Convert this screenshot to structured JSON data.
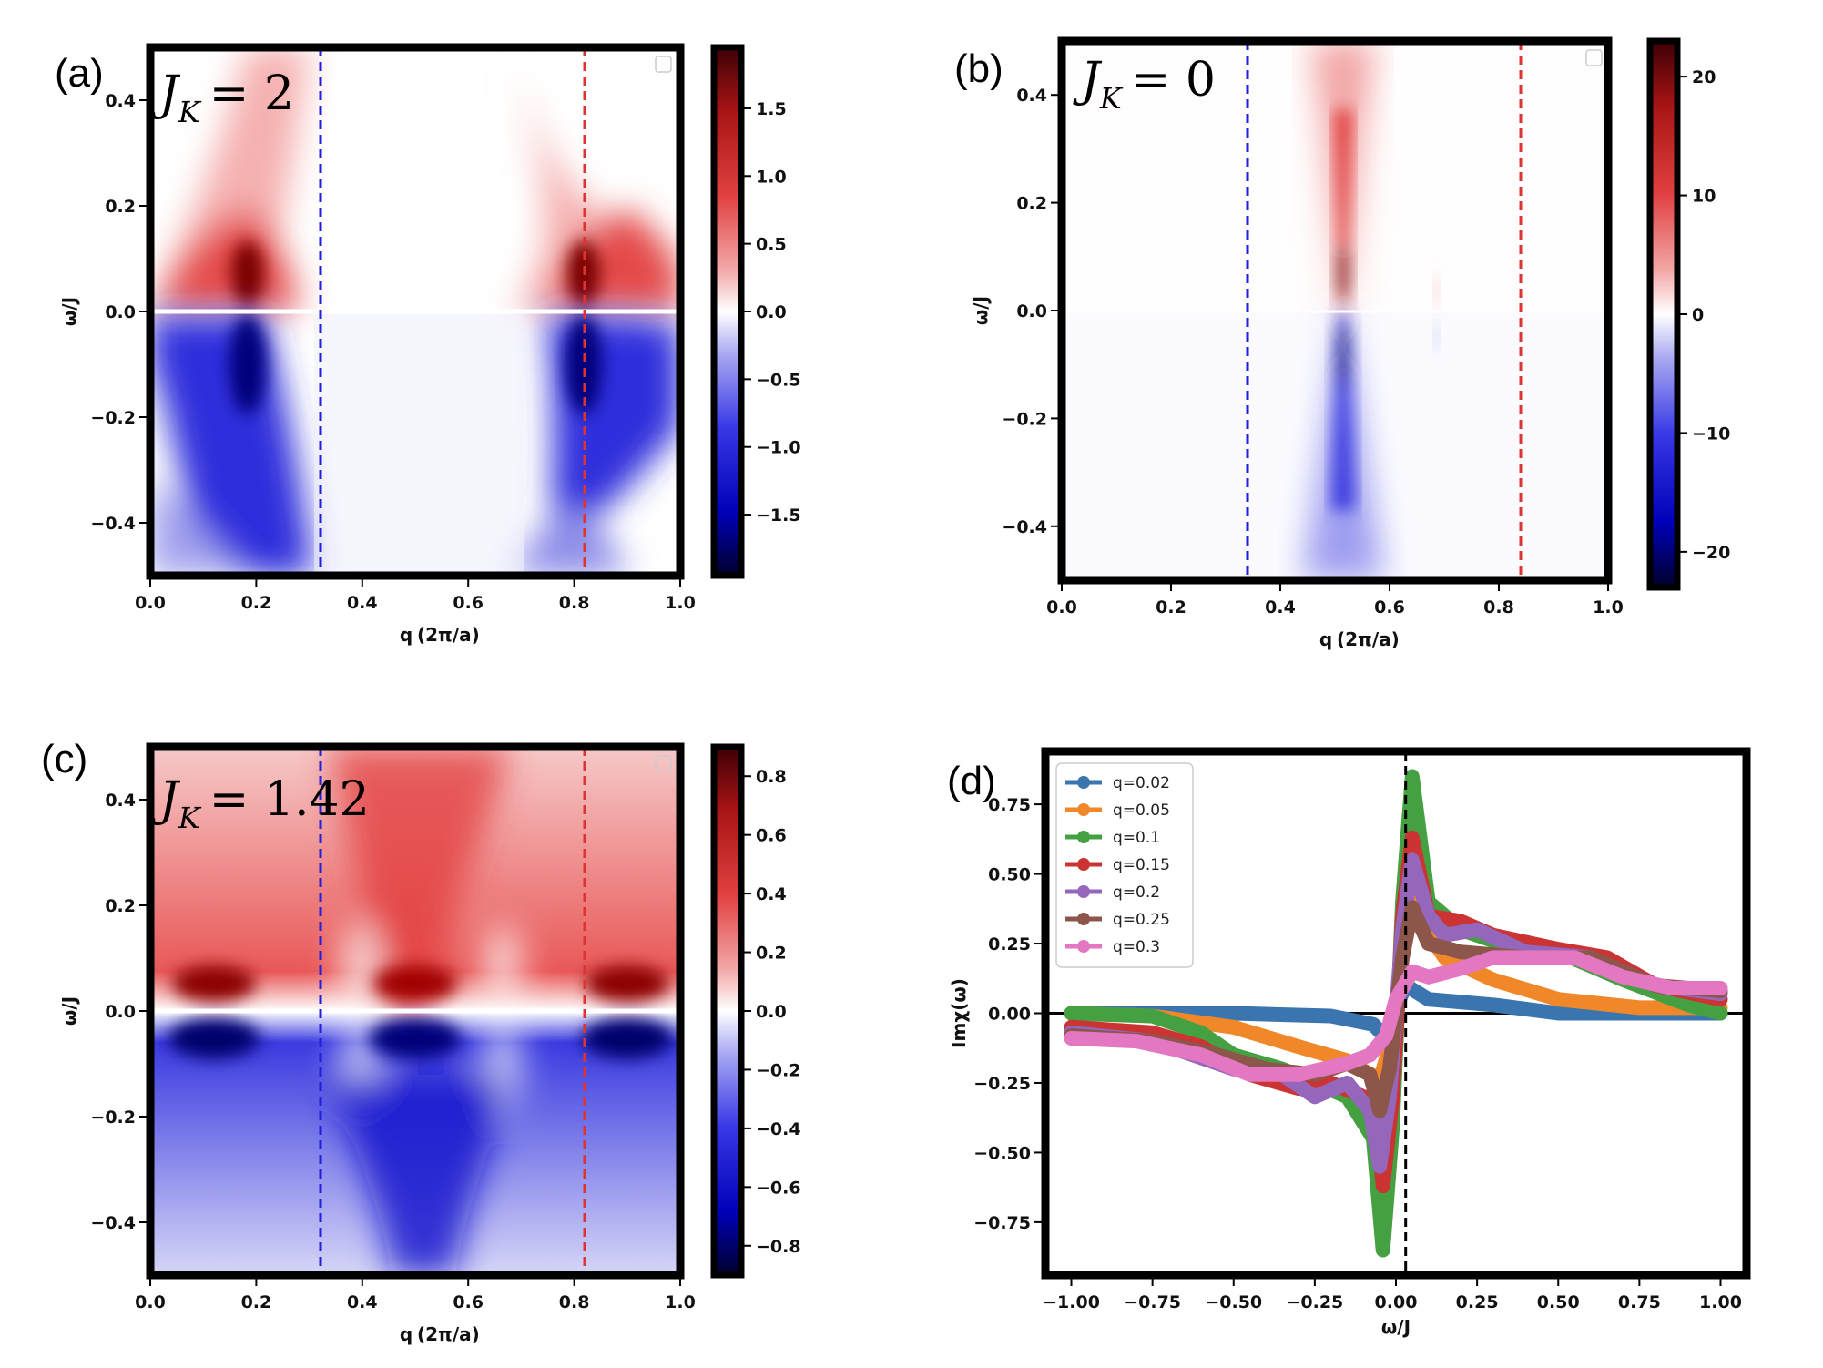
{
  "panels": [
    {
      "letter": "(a)",
      "type": "heatmap",
      "annotation": "J_K = 2",
      "annotation_main": "J",
      "annotation_sub": "K",
      "annotation_value": "= 2",
      "xlabel": "q",
      "xlabel_frac": "(2π/a)",
      "ylabel": "ω/J",
      "xlim": [
        0.0,
        1.0
      ],
      "ylim": [
        -0.5,
        0.5
      ],
      "xticks": [
        "0.0",
        "0.2",
        "0.4",
        "0.6",
        "0.8",
        "1.0"
      ],
      "yticks": [
        "0.4",
        "0.2",
        "0.0",
        "−0.2",
        "−0.4"
      ],
      "yticks_values": [
        0.4,
        0.2,
        0.0,
        -0.2,
        -0.4
      ],
      "xticks_values": [
        0.0,
        0.2,
        0.4,
        0.6,
        0.8,
        1.0
      ],
      "colorbar": {
        "range": [
          -1.95,
          1.95
        ],
        "ticks": [
          1.5,
          1.0,
          0.5,
          0.0,
          -0.5,
          -1.0,
          -1.5
        ],
        "tick_labels": [
          "1.5",
          "1.0",
          "0.5",
          "0.0",
          "−0.5",
          "−1.0",
          "−1.5"
        ]
      },
      "vlines": [
        {
          "x": 0.32,
          "color": "#1f1fdd"
        },
        {
          "x": 0.82,
          "color": "#dd3333"
        }
      ],
      "peaks": [
        0.18,
        0.82
      ]
    },
    {
      "letter": "(b)",
      "type": "heatmap",
      "annotation": "J_K = 0",
      "annotation_main": "J",
      "annotation_sub": "K",
      "annotation_value": "= 0",
      "xlabel": "q",
      "xlabel_frac": "(2π/a)",
      "ylabel": "ω/J",
      "xlim": [
        0.0,
        1.0
      ],
      "ylim": [
        -0.5,
        0.5
      ],
      "xticks": [
        "0.0",
        "0.2",
        "0.4",
        "0.6",
        "0.8",
        "1.0"
      ],
      "yticks": [
        "0.4",
        "0.2",
        "0.0",
        "−0.2",
        "−0.4"
      ],
      "yticks_values": [
        0.4,
        0.2,
        0.0,
        -0.2,
        -0.4
      ],
      "xticks_values": [
        0.0,
        0.2,
        0.4,
        0.6,
        0.8,
        1.0
      ],
      "colorbar": {
        "range": [
          -23,
          23
        ],
        "ticks": [
          20,
          10,
          0,
          -10,
          -20
        ],
        "tick_labels": [
          "20",
          "10",
          "0",
          "−10",
          "−20"
        ]
      },
      "vlines": [
        {
          "x": 0.32,
          "color": "#1f1fdd"
        },
        {
          "x": 0.82,
          "color": "#dd3333"
        }
      ],
      "peaks": [
        0.5
      ]
    },
    {
      "letter": "(c)",
      "type": "heatmap",
      "annotation": "J_K = 1.42",
      "annotation_main": "J",
      "annotation_sub": "K",
      "annotation_value": "= 1.42",
      "xlabel": "q",
      "xlabel_frac": "(2π/a)",
      "ylabel": "ω/J",
      "xlim": [
        0.0,
        1.0
      ],
      "ylim": [
        -0.5,
        0.5
      ],
      "xticks": [
        "0.0",
        "0.2",
        "0.4",
        "0.6",
        "0.8",
        "1.0"
      ],
      "yticks": [
        "0.4",
        "0.2",
        "0.0",
        "−0.2",
        "−0.4"
      ],
      "yticks_values": [
        0.4,
        0.2,
        0.0,
        -0.2,
        -0.4
      ],
      "xticks_values": [
        0.0,
        0.2,
        0.4,
        0.6,
        0.8,
        1.0
      ],
      "colorbar": {
        "range": [
          -0.9,
          0.9
        ],
        "ticks": [
          0.8,
          0.6,
          0.4,
          0.2,
          0.0,
          -0.2,
          -0.4,
          -0.6,
          -0.8
        ],
        "tick_labels": [
          "0.8",
          "0.6",
          "0.4",
          "0.2",
          "0.0",
          "−0.2",
          "−0.4",
          "−0.6",
          "−0.8"
        ]
      },
      "vlines": [
        {
          "x": 0.32,
          "color": "#1f1fdd"
        },
        {
          "x": 0.82,
          "color": "#dd3333"
        }
      ],
      "peaks": [
        0.12,
        0.5,
        0.88
      ]
    },
    {
      "letter": "(d)",
      "type": "line",
      "xlabel": "ω/J",
      "ylabel": "Imχ(ω)",
      "xlim": [
        -1.08,
        1.08
      ],
      "ylim": [
        -0.94,
        0.94
      ],
      "xticks": [
        "−1.00",
        "−0.75",
        "−0.50",
        "−0.25",
        "0.00",
        "0.25",
        "0.50",
        "0.75",
        "1.00"
      ],
      "xticks_values": [
        -1.0,
        -0.75,
        -0.5,
        -0.25,
        0.0,
        0.25,
        0.5,
        0.75,
        1.0
      ],
      "yticks": [
        "0.75",
        "0.50",
        "0.25",
        "0.00",
        "−0.25",
        "−0.50",
        "−0.75"
      ],
      "yticks_values": [
        0.75,
        0.5,
        0.25,
        0.0,
        -0.25,
        -0.5,
        -0.75
      ],
      "vline_x": 0.03,
      "series": [
        {
          "name": "q=0.02",
          "color": "#3a75b0",
          "x": [
            -1.0,
            -0.5,
            -0.2,
            -0.07,
            -0.03,
            0.0,
            0.03,
            0.1,
            0.3,
            0.5,
            0.75,
            1.0
          ],
          "values": [
            0.0,
            0.0,
            -0.01,
            -0.04,
            -0.09,
            0.02,
            0.1,
            0.05,
            0.03,
            0.0,
            0.0,
            0.0
          ]
        },
        {
          "name": "q=0.05",
          "color": "#f0882a",
          "x": [
            -1.0,
            -0.75,
            -0.5,
            -0.3,
            -0.15,
            -0.05,
            0.0,
            0.03,
            0.08,
            0.15,
            0.3,
            0.5,
            0.75,
            1.0
          ],
          "values": [
            0.0,
            -0.01,
            -0.05,
            -0.12,
            -0.17,
            -0.24,
            -0.05,
            0.45,
            0.32,
            0.2,
            0.12,
            0.05,
            0.02,
            0.02
          ]
        },
        {
          "name": "q=0.1",
          "color": "#45a042",
          "x": [
            -1.0,
            -0.75,
            -0.6,
            -0.5,
            -0.35,
            -0.25,
            -0.15,
            -0.07,
            -0.04,
            -0.01,
            0.02,
            0.05,
            0.1,
            0.2,
            0.3,
            0.5,
            0.7,
            0.9,
            1.0
          ],
          "values": [
            0.0,
            -0.01,
            -0.07,
            -0.15,
            -0.2,
            -0.25,
            -0.3,
            -0.45,
            -0.85,
            -0.4,
            0.4,
            0.85,
            0.4,
            0.3,
            0.26,
            0.22,
            0.12,
            0.03,
            0.0
          ]
        },
        {
          "name": "q=0.15",
          "color": "#cc3333",
          "x": [
            -1.0,
            -0.75,
            -0.6,
            -0.45,
            -0.3,
            -0.2,
            -0.1,
            -0.06,
            -0.04,
            -0.01,
            0.02,
            0.05,
            0.1,
            0.2,
            0.3,
            0.5,
            0.65,
            0.8,
            1.0
          ],
          "values": [
            -0.05,
            -0.07,
            -0.12,
            -0.22,
            -0.27,
            -0.25,
            -0.3,
            -0.38,
            -0.62,
            -0.3,
            0.35,
            0.63,
            0.35,
            0.33,
            0.28,
            0.23,
            0.2,
            0.1,
            0.05
          ]
        },
        {
          "name": "q=0.2",
          "color": "#9467bd",
          "x": [
            -1.0,
            -0.75,
            -0.5,
            -0.35,
            -0.25,
            -0.15,
            -0.08,
            -0.05,
            -0.02,
            0.02,
            0.05,
            0.1,
            0.15,
            0.25,
            0.4,
            0.6,
            0.8,
            1.0
          ],
          "values": [
            -0.07,
            -0.1,
            -0.2,
            -0.22,
            -0.3,
            -0.25,
            -0.35,
            -0.55,
            -0.3,
            0.3,
            0.55,
            0.35,
            0.28,
            0.3,
            0.22,
            0.2,
            0.1,
            0.07
          ]
        },
        {
          "name": "q=0.25",
          "color": "#8c564b",
          "x": [
            -1.0,
            -0.75,
            -0.55,
            -0.4,
            -0.25,
            -0.15,
            -0.08,
            -0.05,
            -0.02,
            0.02,
            0.05,
            0.1,
            0.2,
            0.4,
            0.6,
            0.8,
            1.0
          ],
          "values": [
            -0.08,
            -0.1,
            -0.15,
            -0.2,
            -0.22,
            -0.18,
            -0.22,
            -0.35,
            -0.2,
            0.2,
            0.38,
            0.25,
            0.22,
            0.2,
            0.2,
            0.1,
            0.08
          ]
        },
        {
          "name": "q=0.3",
          "color": "#e377c2",
          "x": [
            -1.0,
            -0.8,
            -0.6,
            -0.45,
            -0.3,
            -0.15,
            -0.08,
            -0.03,
            0.0,
            0.05,
            0.1,
            0.2,
            0.3,
            0.4,
            0.55,
            0.7,
            0.85,
            1.0
          ],
          "values": [
            -0.09,
            -0.1,
            -0.15,
            -0.22,
            -0.22,
            -0.18,
            -0.15,
            -0.08,
            0.05,
            0.15,
            0.13,
            0.16,
            0.2,
            0.2,
            0.2,
            0.13,
            0.09,
            0.09
          ]
        }
      ]
    }
  ]
}
